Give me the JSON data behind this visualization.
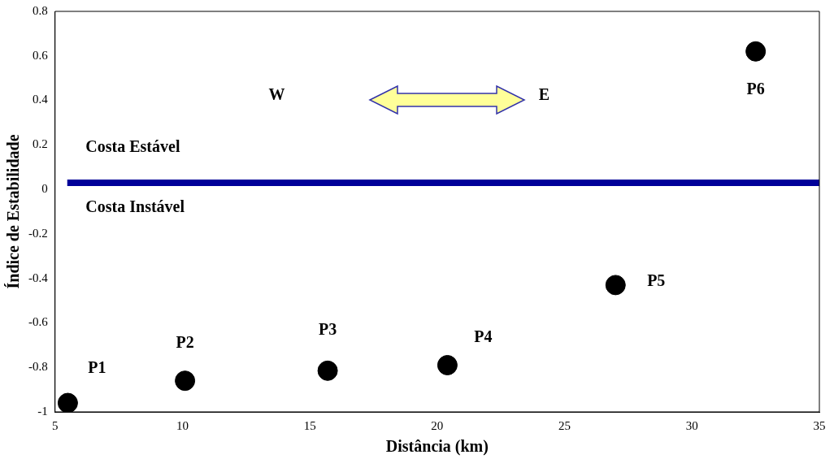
{
  "chart_data": {
    "type": "scatter",
    "xlabel": "Distância (km)",
    "ylabel": "Índice de Estabilidade",
    "x": [
      5.5,
      10.1,
      15.7,
      20.4,
      27.0,
      32.5
    ],
    "values": [
      -0.96,
      -0.86,
      -0.815,
      -0.79,
      -0.43,
      0.62
    ],
    "color": "#000000",
    "marker": "circle",
    "grid": false,
    "legend": false,
    "xlim": [
      5,
      35
    ],
    "xticks": [
      5,
      10,
      15,
      20,
      25,
      30,
      35
    ],
    "ylim": [
      -1,
      0.8
    ],
    "yticks": [
      -1,
      -0.8,
      -0.6,
      -0.4,
      -0.2,
      0,
      0.2,
      0.4,
      0.6,
      0.8
    ],
    "ref_lines": [
      {
        "axis": "y",
        "value": 0.03,
        "color": "#000099"
      }
    ],
    "value_labels": [
      "P1",
      "P2",
      "P3",
      "P4",
      "P5",
      "P6"
    ],
    "annotations": [
      "W",
      "E",
      "Costa Estável",
      "Costa Instável"
    ]
  }
}
